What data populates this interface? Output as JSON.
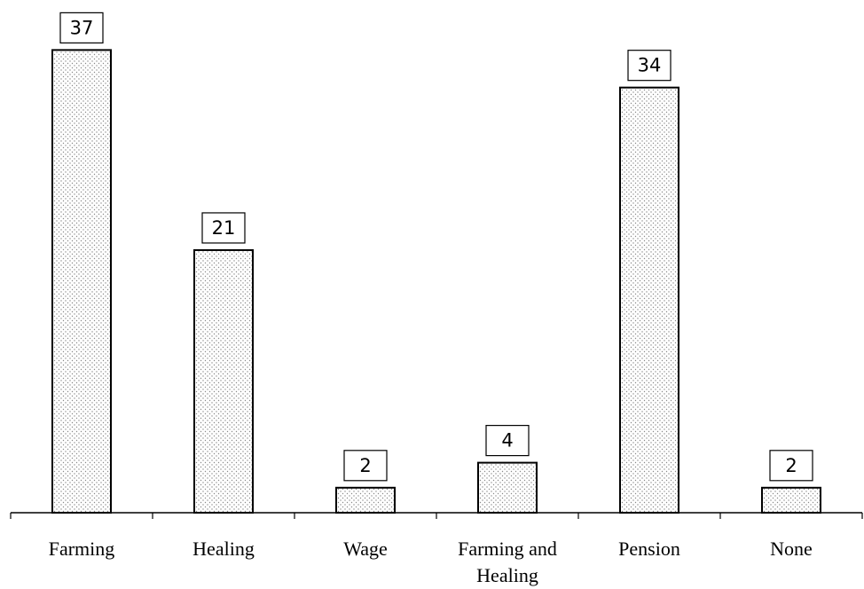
{
  "chart_data": {
    "type": "bar",
    "categories": [
      "Farming",
      "Healing",
      "Wage",
      "Farming and Healing",
      "Pension",
      "None"
    ],
    "values": [
      37,
      21,
      2,
      4,
      34,
      2
    ],
    "color": "#ffffff",
    "ylim": [
      0,
      41
    ]
  }
}
